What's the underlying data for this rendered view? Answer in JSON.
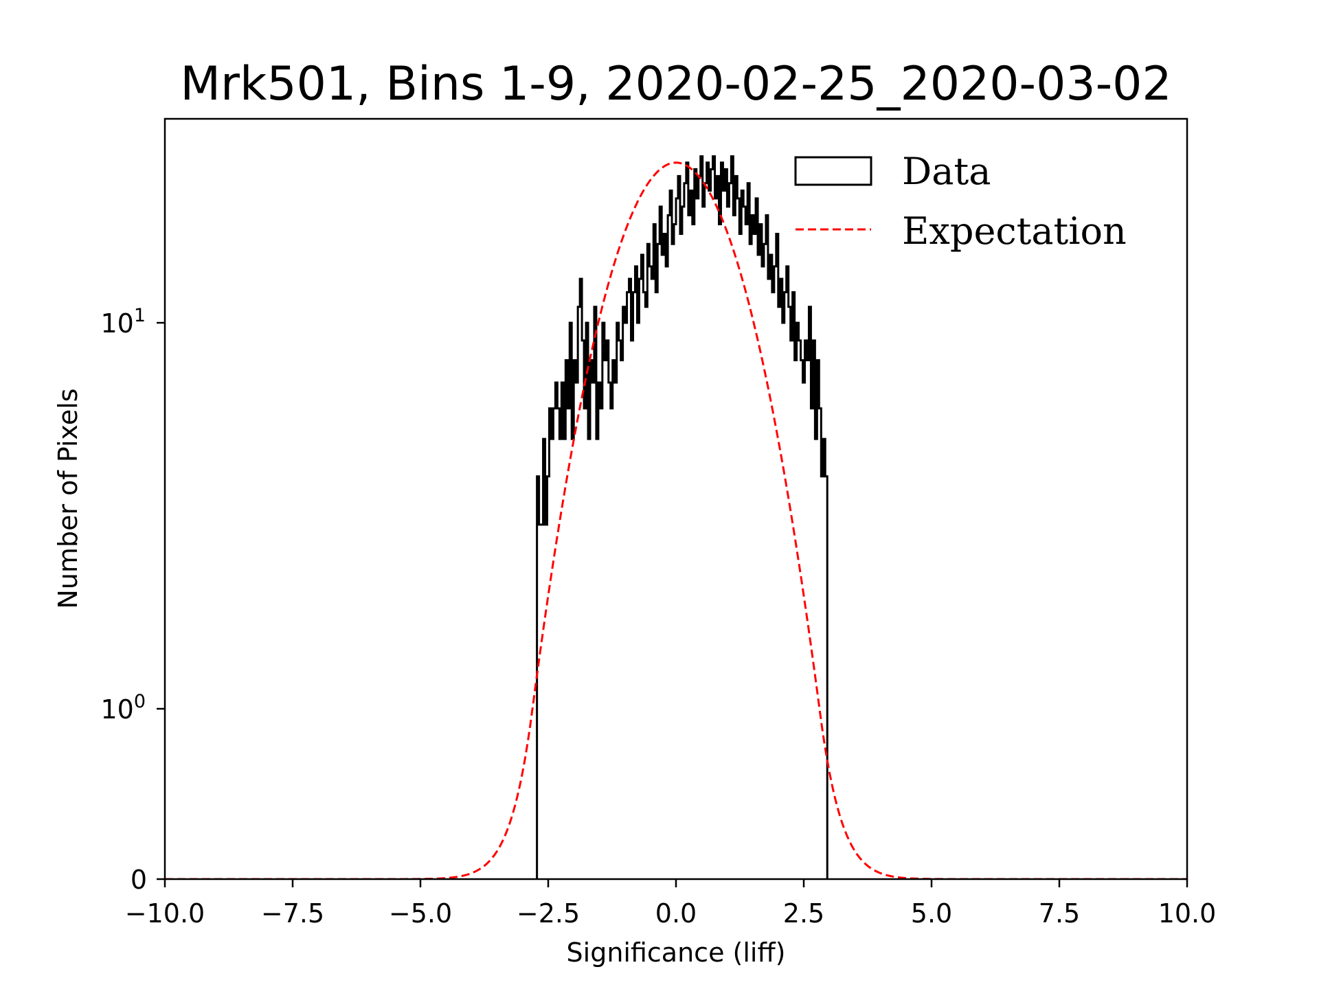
{
  "chart_data": {
    "type": "histogram",
    "title": "Mrk501, Bins 1-9, 2020-02-25_2020-03-02",
    "xlabel": "Significance (liff)",
    "ylabel": "Number of Pixels",
    "xlim": [
      -10,
      10
    ],
    "yscale": "symlog",
    "ylim": [
      0,
      33.7
    ],
    "x_ticks": [
      -10,
      -7.5,
      -5,
      -2.5,
      0,
      2.5,
      5,
      7.5,
      10
    ],
    "x_tick_labels": [
      "−10.0",
      "−7.5",
      "−5.0",
      "−2.5",
      "0.0",
      "2.5",
      "5.0",
      "7.5",
      "10.0"
    ],
    "y_ticks": [
      0,
      1,
      10
    ],
    "y_tick_labels": [
      {
        "base": "0",
        "exp": ""
      },
      {
        "base": "10",
        "exp": "0"
      },
      {
        "base": "10",
        "exp": "1"
      }
    ],
    "legend": {
      "position": "top-right",
      "entries": [
        {
          "label": "Data",
          "style": "step-box",
          "color": "#000000"
        },
        {
          "label": "Expectation",
          "style": "dashed-line",
          "color": "#ff0000"
        }
      ]
    },
    "series": [
      {
        "name": "Data",
        "kind": "step-histogram",
        "color": "#000000",
        "bin_start": -2.72,
        "bin_width": 0.04,
        "counts": [
          4,
          3,
          3,
          5,
          3,
          4,
          6,
          5,
          6,
          7,
          6,
          5,
          7,
          5,
          8,
          6,
          10,
          5,
          8,
          7,
          11,
          13,
          9,
          6,
          10,
          5,
          8,
          7,
          11,
          5,
          7,
          6,
          10,
          8,
          9,
          7,
          6,
          8,
          7,
          10,
          9,
          8,
          11,
          10,
          12,
          13,
          9,
          12,
          14,
          10,
          13,
          15,
          12,
          11,
          16,
          14,
          13,
          18,
          12,
          16,
          20,
          15,
          17,
          14,
          19,
          22,
          16,
          18,
          21,
          24,
          17,
          20,
          23,
          26,
          19,
          22,
          18,
          25,
          21,
          24,
          27,
          20,
          23,
          26,
          22,
          25,
          27,
          21,
          24,
          18,
          26,
          22,
          25,
          20,
          23,
          27,
          19,
          24,
          21,
          17,
          22,
          20,
          18,
          23,
          16,
          19,
          17,
          21,
          15,
          18,
          14,
          16,
          19,
          13,
          15,
          12,
          14,
          17,
          11,
          13,
          10,
          12,
          14,
          11,
          9,
          12,
          8,
          10,
          9,
          8,
          7,
          9,
          8,
          11,
          6,
          9,
          5,
          8,
          6,
          4,
          5,
          4
        ],
        "range": [
          -2.72,
          2.96
        ]
      },
      {
        "name": "Expectation",
        "kind": "gaussian",
        "color": "#ff0000",
        "mean": 0.0,
        "sigma": 1.1,
        "peak": 26
      }
    ]
  }
}
